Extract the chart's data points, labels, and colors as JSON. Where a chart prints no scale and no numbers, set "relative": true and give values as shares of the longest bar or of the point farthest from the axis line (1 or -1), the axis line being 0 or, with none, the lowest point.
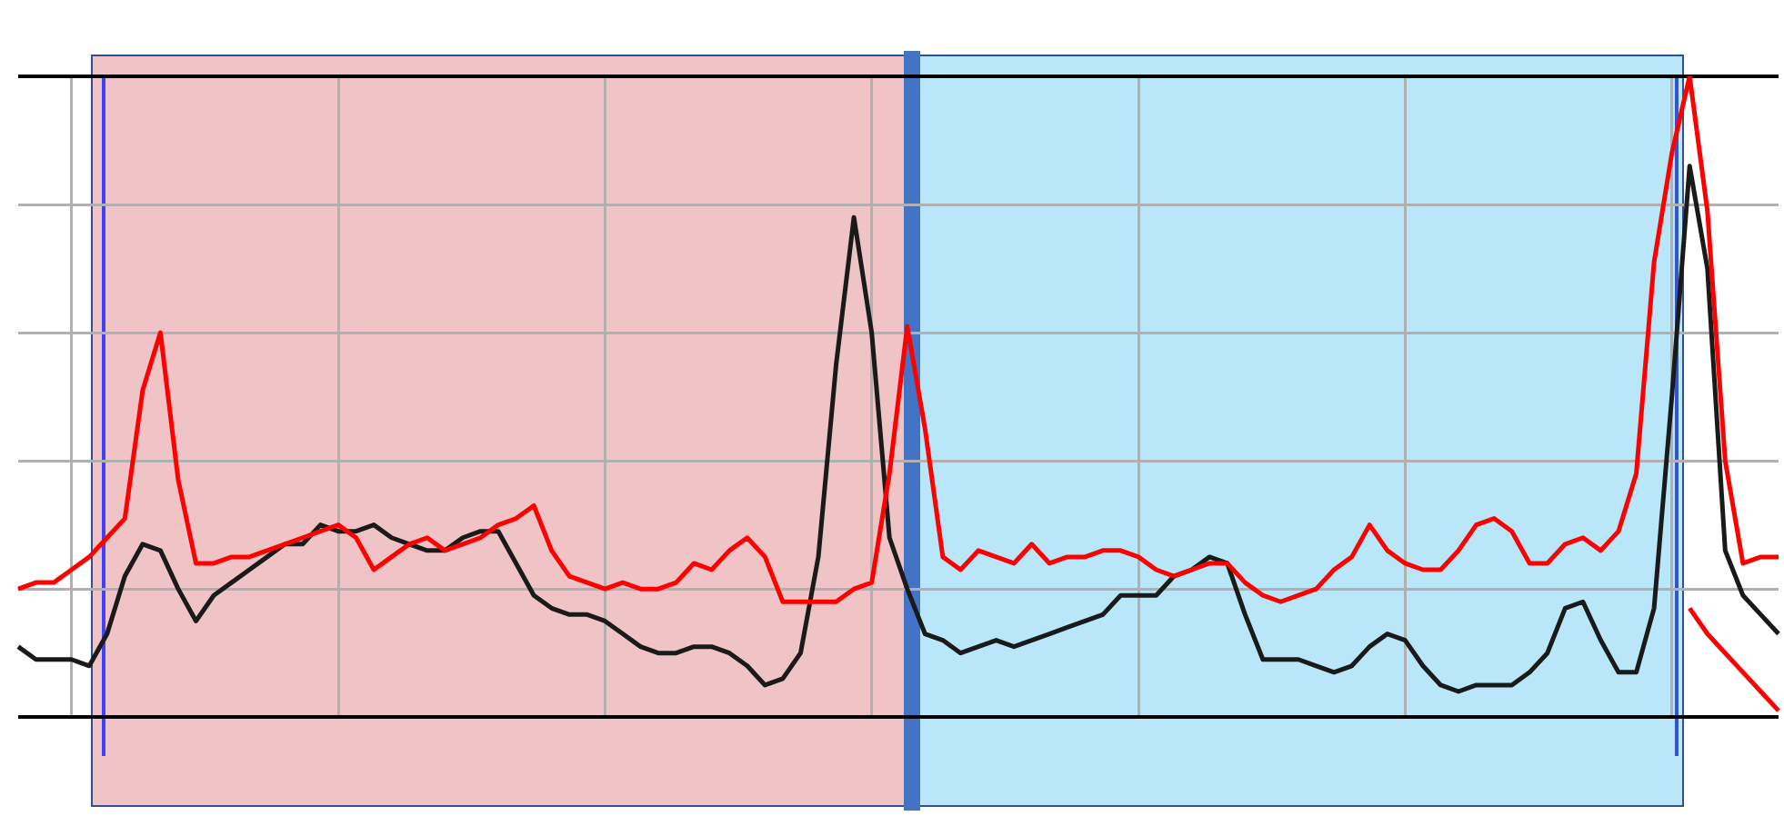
{
  "chart_data": {
    "type": "line",
    "relative": true,
    "categories": [
      null,
      null,
      null,
      null,
      null,
      null,
      null,
      null,
      null,
      null,
      null,
      null,
      null,
      null,
      null,
      null,
      null,
      null,
      null,
      null,
      null,
      null,
      null,
      null,
      null,
      null,
      null,
      null,
      null,
      null,
      null,
      null,
      null,
      null,
      null,
      null,
      null,
      null,
      null,
      null,
      null,
      null,
      null,
      null,
      null,
      null,
      null,
      null,
      null,
      null,
      null,
      null,
      null,
      null,
      null,
      null,
      null,
      null,
      null,
      null,
      null,
      null,
      null,
      null,
      null,
      null,
      null,
      null,
      null,
      null,
      null,
      null,
      null,
      null,
      null,
      null,
      null,
      null,
      null,
      null,
      null,
      null,
      null,
      null,
      null,
      null,
      null,
      null,
      null,
      null,
      null,
      null,
      null,
      null,
      null,
      null,
      null,
      null,
      null,
      null
    ],
    "grid": true,
    "legend": false,
    "marker": "none",
    "line_style": "solid",
    "series": [
      {
        "color": "#ff0000",
        "values": [
          0.2,
          0.21,
          0.21,
          0.23,
          0.25,
          0.28,
          0.31,
          0.51,
          0.6,
          0.37,
          0.24,
          0.24,
          0.25,
          0.25,
          0.26,
          0.27,
          0.28,
          0.29,
          0.3,
          0.28,
          0.23,
          0.25,
          0.27,
          0.28,
          0.26,
          0.27,
          0.28,
          0.3,
          0.31,
          0.33,
          0.26,
          0.22,
          0.21,
          0.2,
          0.21,
          0.2,
          0.2,
          0.21,
          0.24,
          0.23,
          0.26,
          0.28,
          0.25,
          0.18,
          0.18,
          0.18,
          0.18,
          0.2,
          0.21,
          0.38,
          0.61,
          0.45,
          0.25,
          0.23,
          0.26,
          0.25,
          0.24,
          0.27,
          0.24,
          0.25,
          0.25,
          0.26,
          0.26,
          0.25,
          0.23,
          0.22,
          0.23,
          0.24,
          0.24,
          0.21,
          0.19,
          0.18,
          0.19,
          0.2,
          0.23,
          0.25,
          0.3,
          0.26,
          0.24,
          0.23,
          0.23,
          0.26,
          0.3,
          0.31,
          0.29,
          0.24,
          0.24,
          0.27,
          0.28,
          0.26,
          0.29,
          0.38,
          0.71,
          0.88,
          1,
          0.79,
          0.4,
          0.24,
          0.25,
          0.25
        ]
      },
      {
        "color": "#1a1a1a",
        "values": [
          0.11,
          0.09,
          0.09,
          0.09,
          0.08,
          0.13,
          0.22,
          0.27,
          0.26,
          0.2,
          0.15,
          0.19,
          0.21,
          0.23,
          0.25,
          0.27,
          0.27,
          0.3,
          0.29,
          0.29,
          0.3,
          0.28,
          0.27,
          0.26,
          0.26,
          0.28,
          0.29,
          0.29,
          0.24,
          0.19,
          0.17,
          0.16,
          0.16,
          0.15,
          0.13,
          0.11,
          0.1,
          0.1,
          0.11,
          0.11,
          0.1,
          0.08,
          0.05,
          0.06,
          0.1,
          0.25,
          0.55,
          0.78,
          0.6,
          0.28,
          0.2,
          0.13,
          0.12,
          0.1,
          0.11,
          0.12,
          0.11,
          0.12,
          0.13,
          0.14,
          0.15,
          0.16,
          0.19,
          0.19,
          0.19,
          0.22,
          0.23,
          0.25,
          0.24,
          0.16,
          0.09,
          0.09,
          0.09,
          0.08,
          0.07,
          0.08,
          0.11,
          0.13,
          0.12,
          0.08,
          0.05,
          0.04,
          0.05,
          0.05,
          0.05,
          0.07,
          0.1,
          0.17,
          0.18,
          0.12,
          0.07,
          0.07,
          0.17,
          0.5,
          0.86,
          0.7,
          0.26,
          0.19,
          0.16,
          0.13
        ]
      },
      {
        "color": "#ff0000",
        "values": [
          null,
          null,
          null,
          null,
          null,
          null,
          null,
          null,
          null,
          null,
          null,
          null,
          null,
          null,
          null,
          null,
          null,
          null,
          null,
          null,
          null,
          null,
          null,
          null,
          null,
          null,
          null,
          null,
          null,
          null,
          null,
          null,
          null,
          null,
          null,
          null,
          null,
          null,
          null,
          null,
          null,
          null,
          null,
          null,
          null,
          null,
          null,
          null,
          null,
          null,
          null,
          null,
          null,
          null,
          null,
          null,
          null,
          null,
          null,
          null,
          null,
          null,
          null,
          null,
          null,
          null,
          null,
          null,
          null,
          null,
          null,
          null,
          null,
          null,
          null,
          null,
          null,
          null,
          null,
          null,
          null,
          null,
          null,
          null,
          null,
          null,
          null,
          null,
          null,
          null,
          null,
          null,
          null,
          null,
          0.17,
          0.13,
          0.1,
          0.07,
          0.04,
          0.01
        ]
      }
    ]
  }
}
